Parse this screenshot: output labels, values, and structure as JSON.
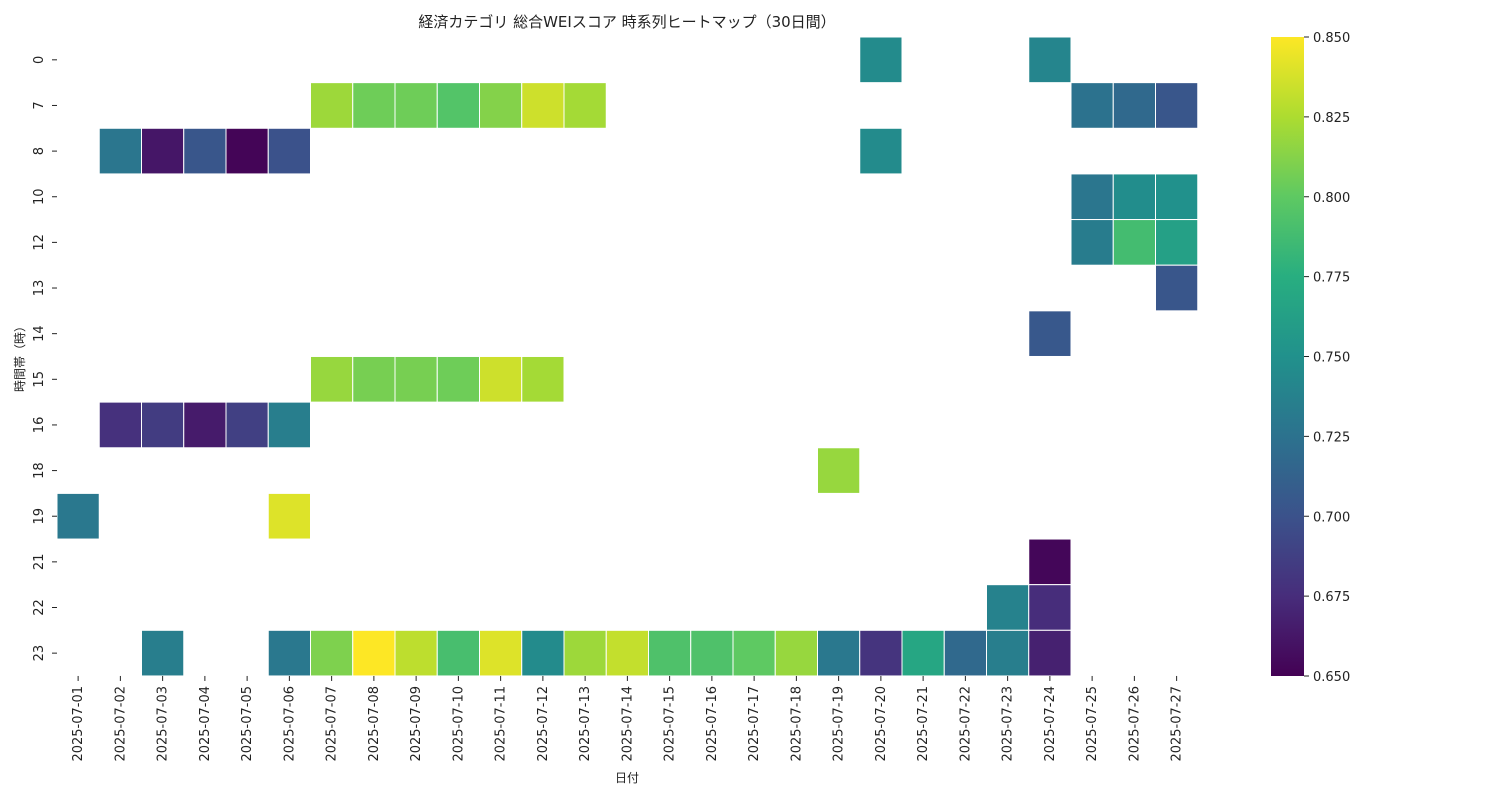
{
  "chart_data": {
    "type": "heatmap",
    "title": "経済カテゴリ 総合WEIスコア 時系列ヒートマップ（30日間）",
    "xlabel": "日付",
    "ylabel": "時間帯（時）",
    "x": [
      "2025-07-01",
      "2025-07-02",
      "2025-07-03",
      "2025-07-04",
      "2025-07-05",
      "2025-07-06",
      "2025-07-07",
      "2025-07-08",
      "2025-07-09",
      "2025-07-10",
      "2025-07-11",
      "2025-07-12",
      "2025-07-13",
      "2025-07-14",
      "2025-07-15",
      "2025-07-16",
      "2025-07-17",
      "2025-07-18",
      "2025-07-19",
      "2025-07-20",
      "2025-07-21",
      "2025-07-22",
      "2025-07-23",
      "2025-07-24",
      "2025-07-25",
      "2025-07-26",
      "2025-07-27"
    ],
    "y": [
      "0",
      "7",
      "8",
      "10",
      "12",
      "13",
      "14",
      "15",
      "16",
      "18",
      "19",
      "21",
      "22",
      "23"
    ],
    "values": [
      [
        null,
        null,
        null,
        null,
        null,
        null,
        null,
        null,
        null,
        null,
        null,
        null,
        null,
        null,
        null,
        null,
        null,
        null,
        null,
        0.745,
        null,
        null,
        null,
        0.74,
        null,
        null,
        null
      ],
      [
        null,
        null,
        null,
        null,
        null,
        null,
        0.82,
        0.805,
        0.805,
        0.795,
        0.812,
        0.835,
        0.822,
        null,
        null,
        null,
        null,
        null,
        null,
        null,
        null,
        null,
        null,
        null,
        0.725,
        0.718,
        0.703
      ],
      [
        null,
        0.728,
        0.662,
        0.703,
        0.652,
        0.7,
        null,
        null,
        null,
        null,
        null,
        null,
        null,
        null,
        null,
        null,
        null,
        null,
        null,
        0.745,
        null,
        null,
        null,
        null,
        null,
        null,
        null
      ],
      [
        null,
        null,
        null,
        null,
        null,
        null,
        null,
        null,
        null,
        null,
        null,
        null,
        null,
        null,
        null,
        null,
        null,
        null,
        null,
        null,
        null,
        null,
        null,
        null,
        0.728,
        0.747,
        0.75
      ],
      [
        null,
        null,
        null,
        null,
        null,
        null,
        null,
        null,
        null,
        null,
        null,
        null,
        null,
        null,
        null,
        null,
        null,
        null,
        null,
        null,
        null,
        null,
        null,
        null,
        0.733,
        0.788,
        0.763
      ],
      [
        null,
        null,
        null,
        null,
        null,
        null,
        null,
        null,
        null,
        null,
        null,
        null,
        null,
        null,
        null,
        null,
        null,
        null,
        null,
        null,
        null,
        null,
        null,
        null,
        null,
        null,
        0.703
      ],
      [
        null,
        null,
        null,
        null,
        null,
        null,
        null,
        null,
        null,
        null,
        null,
        null,
        null,
        null,
        null,
        null,
        null,
        null,
        null,
        null,
        null,
        null,
        null,
        0.705,
        null,
        null,
        null
      ],
      [
        null,
        null,
        null,
        null,
        null,
        null,
        0.818,
        0.808,
        0.808,
        0.805,
        0.835,
        0.822,
        null,
        null,
        null,
        null,
        null,
        null,
        null,
        null,
        null,
        null,
        null,
        null,
        null,
        null,
        null
      ],
      [
        null,
        0.678,
        0.685,
        0.665,
        0.688,
        0.735,
        null,
        null,
        null,
        null,
        null,
        null,
        null,
        null,
        null,
        null,
        null,
        null,
        null,
        null,
        null,
        null,
        null,
        null,
        null,
        null,
        null
      ],
      [
        null,
        null,
        null,
        null,
        null,
        null,
        null,
        null,
        null,
        null,
        null,
        null,
        null,
        null,
        null,
        null,
        null,
        null,
        0.818,
        null,
        null,
        null,
        null,
        null,
        null,
        null,
        null
      ],
      [
        0.73,
        null,
        null,
        null,
        null,
        0.84,
        null,
        null,
        null,
        null,
        null,
        null,
        null,
        null,
        null,
        null,
        null,
        null,
        null,
        null,
        null,
        null,
        null,
        null,
        null,
        null,
        null
      ],
      [
        null,
        null,
        null,
        null,
        null,
        null,
        null,
        null,
        null,
        null,
        null,
        null,
        null,
        null,
        null,
        null,
        null,
        null,
        null,
        null,
        null,
        null,
        null,
        0.653,
        null,
        null,
        null
      ],
      [
        null,
        null,
        null,
        null,
        null,
        null,
        null,
        null,
        null,
        null,
        null,
        null,
        null,
        null,
        null,
        null,
        null,
        null,
        null,
        null,
        null,
        null,
        0.738,
        0.675,
        null,
        null,
        null
      ],
      [
        null,
        null,
        0.735,
        null,
        null,
        0.73,
        0.81,
        0.85,
        0.83,
        0.79,
        0.84,
        0.745,
        0.82,
        0.832,
        0.793,
        0.793,
        0.8,
        0.818,
        0.73,
        0.68,
        0.768,
        0.718,
        0.735,
        0.668,
        null,
        null,
        null
      ]
    ],
    "colorbar": {
      "min": 0.65,
      "max": 0.85,
      "ticks": [
        "0.650",
        "0.675",
        "0.700",
        "0.725",
        "0.750",
        "0.775",
        "0.800",
        "0.825",
        "0.850"
      ]
    },
    "colormap": "viridis",
    "grid": false
  }
}
